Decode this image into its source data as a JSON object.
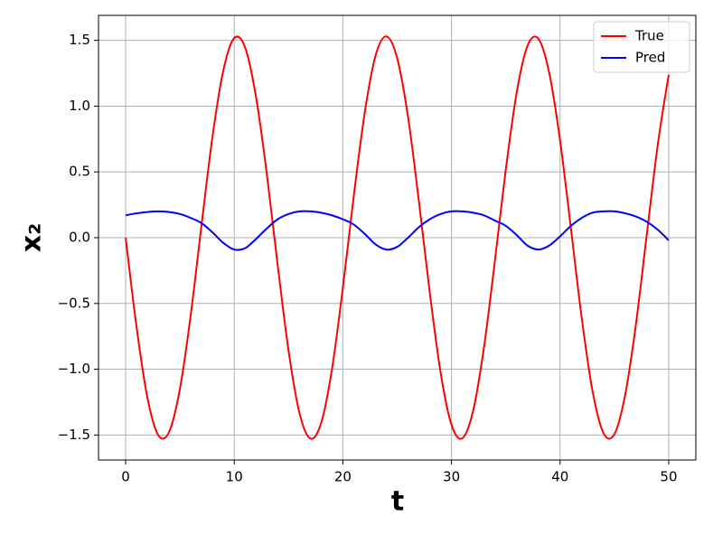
{
  "chart_data": {
    "type": "line",
    "xlabel": "t",
    "ylabel": "x₂",
    "x": [
      0,
      1,
      2,
      3,
      4,
      5,
      6,
      7,
      8,
      9,
      10,
      11,
      12,
      13,
      14,
      15,
      16,
      17,
      18,
      19,
      20,
      21,
      22,
      23,
      24,
      25,
      26,
      27,
      28,
      29,
      30,
      31,
      32,
      33,
      34,
      35,
      36,
      37,
      38,
      39,
      40,
      41,
      42,
      43,
      44,
      45,
      46,
      47,
      48,
      49,
      50
    ],
    "series": [
      {
        "name": "True",
        "color": "#ff0000",
        "values": [
          0,
          -0.677,
          -1.215,
          -1.501,
          -1.477,
          -1.148,
          -0.583,
          0.105,
          0.771,
          1.274,
          1.518,
          1.446,
          1.072,
          0.484,
          -0.21,
          -0.859,
          -1.331,
          -1.527,
          -1.409,
          -0.999,
          -0.381,
          0.313,
          0.943,
          1.381,
          1.53,
          1.365,
          0.918,
          0.278,
          -0.416,
          -1.025,
          -1.422,
          -1.525,
          -1.314,
          -0.83,
          -0.175,
          0.516,
          1.101,
          1.458,
          1.513,
          1.253,
          0.739,
          0.07,
          -0.614,
          -1.171,
          -1.486,
          -1.494,
          -1.192,
          -0.648,
          0.035,
          0.71,
          1.237
        ]
      },
      {
        "name": "Pred",
        "color": "#0000ff",
        "values": [
          0.17,
          0.185,
          0.195,
          0.2,
          0.195,
          0.18,
          0.15,
          0.11,
          0.04,
          -0.04,
          -0.09,
          -0.08,
          -0.01,
          0.07,
          0.14,
          0.18,
          0.2,
          0.2,
          0.19,
          0.17,
          0.14,
          0.1,
          0.03,
          -0.05,
          -0.09,
          -0.07,
          0.0,
          0.08,
          0.14,
          0.18,
          0.2,
          0.2,
          0.19,
          0.17,
          0.13,
          0.09,
          0.02,
          -0.06,
          -0.09,
          -0.06,
          0.01,
          0.09,
          0.15,
          0.19,
          0.2,
          0.2,
          0.185,
          0.16,
          0.12,
          0.06,
          -0.02
        ]
      }
    ],
    "xlim": [
      -2.5,
      52.5
    ],
    "xticks": [
      0,
      10,
      20,
      30,
      40,
      50
    ],
    "ylim": [
      -1.69,
      1.69
    ],
    "yticks": [
      {
        "value": -1.5,
        "label": "−1.5"
      },
      {
        "value": -1.0,
        "label": "−1.0"
      },
      {
        "value": -0.5,
        "label": "−0.5"
      },
      {
        "value": 0,
        "label": "0.0"
      },
      0.5,
      {
        "value": 1.0,
        "label": "1.0"
      },
      1.5
    ],
    "grid": true,
    "legend": "upper right"
  }
}
